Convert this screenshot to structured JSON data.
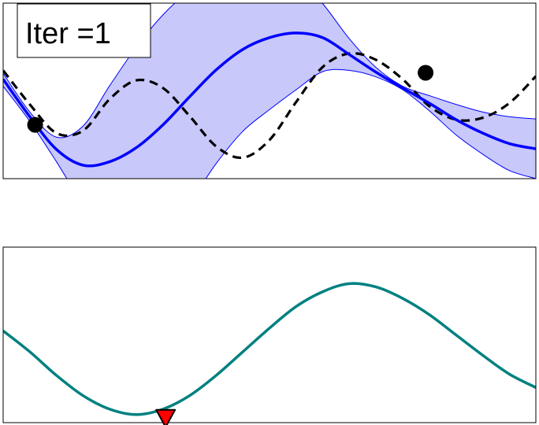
{
  "colors": {
    "band_fill": "#c8c8fa",
    "band_edge": "#0000ff",
    "mean": "#0000ff",
    "truth": "#000000",
    "acquisition": "#008080",
    "marker": "#ff0000",
    "observation": "#000000"
  },
  "chart_data": [
    {
      "type": "line",
      "title": "",
      "annotation": "Iter =1",
      "xlabel": "",
      "ylabel": "",
      "xlim": [
        0,
        1
      ],
      "ylim": [
        -1.5,
        1.5
      ],
      "grid": false,
      "ticks": false,
      "series": [
        {
          "role": "truth",
          "style": "dashed",
          "x": [
            0,
            0.05,
            0.1,
            0.15,
            0.2,
            0.25,
            0.3,
            0.35,
            0.4,
            0.45,
            0.5,
            0.55,
            0.6,
            0.65,
            0.7,
            0.75,
            0.8,
            0.85,
            0.9,
            0.95,
            1
          ],
          "y": [
            0.35,
            -0.23,
            -0.72,
            -0.68,
            -0.14,
            0.18,
            0.05,
            -0.43,
            -0.95,
            -1.14,
            -0.84,
            -0.19,
            0.41,
            0.64,
            0.53,
            0.2,
            -0.26,
            -0.49,
            -0.46,
            -0.21,
            0.25
          ]
        },
        {
          "role": "mean",
          "style": "solid",
          "x": [
            0,
            0.05,
            0.1,
            0.15,
            0.2,
            0.25,
            0.3,
            0.35,
            0.4,
            0.45,
            0.5,
            0.55,
            0.6,
            0.65,
            0.7,
            0.75,
            0.8,
            0.85,
            0.9,
            0.95,
            1
          ],
          "y": [
            0.2,
            -0.44,
            -1.0,
            -1.27,
            -1.21,
            -0.97,
            -0.58,
            -0.1,
            0.36,
            0.71,
            0.91,
            0.99,
            0.91,
            0.62,
            0.32,
            0.05,
            -0.21,
            -0.49,
            -0.72,
            -0.9,
            -0.99
          ]
        },
        {
          "role": "confidence_band",
          "x": [
            0,
            0.05,
            0.1,
            0.15,
            0.2,
            0.25,
            0.3,
            0.35,
            0.4,
            0.45,
            0.5,
            0.55,
            0.6,
            0.65,
            0.7,
            0.75,
            0.8,
            0.85,
            0.9,
            0.95,
            1
          ],
          "y_upper": [
            0.3,
            -0.36,
            -0.79,
            -0.6,
            0.09,
            0.75,
            1.3,
            1.71,
            1.96,
            2.11,
            2.14,
            1.96,
            1.49,
            0.89,
            0.4,
            0.08,
            -0.08,
            -0.23,
            -0.36,
            -0.44,
            -0.48
          ],
          "y_lower": [
            0.08,
            -0.52,
            -1.21,
            -1.94,
            -2.49,
            -2.66,
            -2.42,
            -1.91,
            -1.24,
            -0.69,
            -0.32,
            0.02,
            0.33,
            0.35,
            0.24,
            0.02,
            -0.34,
            -0.75,
            -1.08,
            -1.36,
            -1.5
          ]
        }
      ],
      "observations": [
        {
          "x": 0.06,
          "y": -0.58
        },
        {
          "x": 0.793,
          "y": 0.31
        }
      ]
    },
    {
      "type": "line",
      "title": "",
      "xlabel": "",
      "ylabel": "",
      "xlim": [
        0,
        1
      ],
      "ylim": [
        -1.3,
        1.3
      ],
      "grid": false,
      "ticks": false,
      "series": [
        {
          "role": "acquisition",
          "style": "solid",
          "x": [
            0,
            0.05,
            0.1,
            0.15,
            0.2,
            0.25,
            0.3,
            0.35,
            0.4,
            0.45,
            0.5,
            0.55,
            0.6,
            0.65,
            0.7,
            0.75,
            0.8,
            0.85,
            0.9,
            0.95,
            1
          ],
          "y": [
            0.06,
            -0.25,
            -0.6,
            -0.9,
            -1.1,
            -1.18,
            -1.1,
            -0.9,
            -0.6,
            -0.25,
            0.1,
            0.42,
            0.64,
            0.76,
            0.71,
            0.54,
            0.3,
            0.0,
            -0.3,
            -0.58,
            -0.78
          ]
        }
      ],
      "minimum_marker": {
        "x": 0.305,
        "y": -1.18
      }
    }
  ]
}
